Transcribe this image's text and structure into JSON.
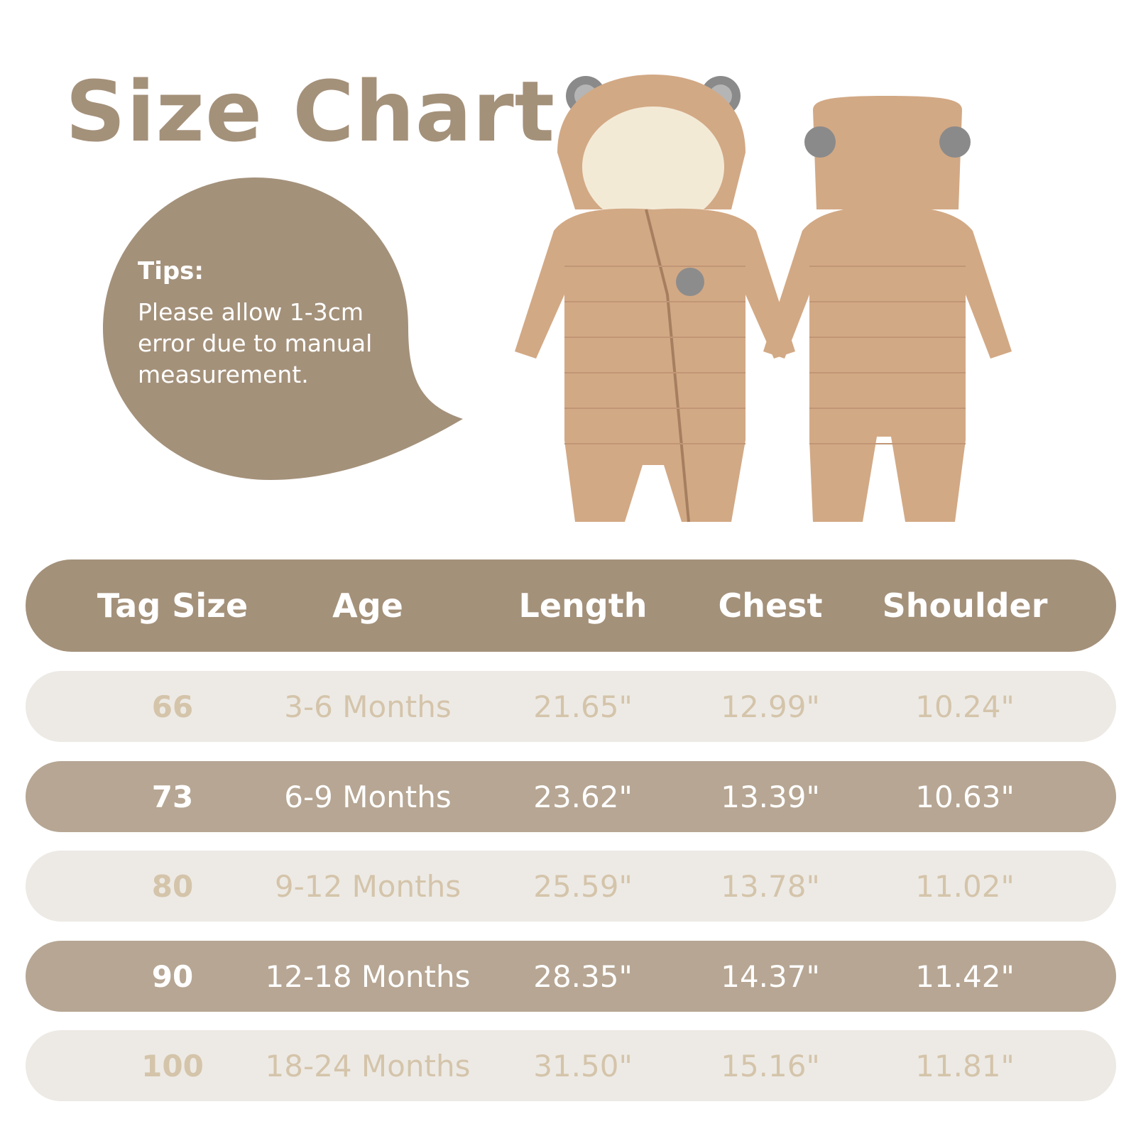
{
  "title": "Size Chart",
  "tips": {
    "heading": "Tips:",
    "text": "Please allow 1-3cm error due to manual measurement."
  },
  "colors": {
    "accent": "#a4917a",
    "row_dark": "#b6a693",
    "row_light": "#edeae5",
    "light_text": "#d4c4aa",
    "garment": "#d2a985"
  },
  "images": [
    "baby-snowsuit-front",
    "baby-snowsuit-back"
  ],
  "table": {
    "headers": [
      "Tag Size",
      "Age",
      "Length",
      "Chest",
      "Shoulder"
    ],
    "rows": [
      [
        "66",
        "3-6 Months",
        "21.65\"",
        "12.99\"",
        "10.24\""
      ],
      [
        "73",
        "6-9 Months",
        "23.62\"",
        "13.39\"",
        "10.63\""
      ],
      [
        "80",
        "9-12 Months",
        "25.59\"",
        "13.78\"",
        "11.02\""
      ],
      [
        "90",
        "12-18 Months",
        "28.35\"",
        "14.37\"",
        "11.42\""
      ],
      [
        "100",
        "18-24 Months",
        "31.50\"",
        "15.16\"",
        "11.81\""
      ]
    ]
  }
}
